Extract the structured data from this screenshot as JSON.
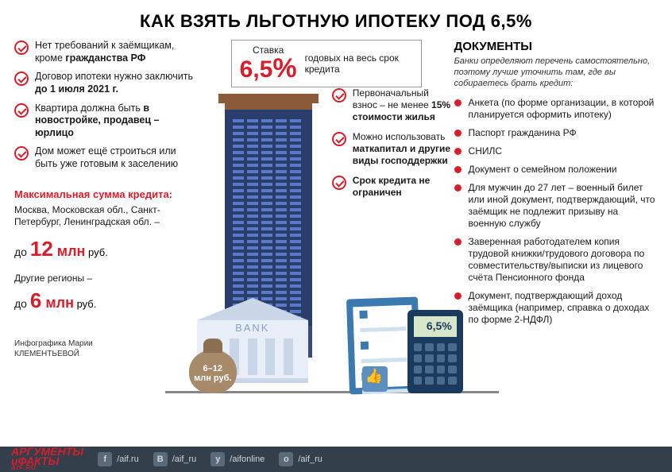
{
  "colors": {
    "accent": "#d81e2a",
    "text": "#1a1a1a",
    "footer_bg": "#333f4a",
    "building": "#2a3e6e",
    "bank": "#e8eef7"
  },
  "title": "КАК ВЗЯТЬ ЛЬГОТНУЮ ИПОТЕКУ ПОД 6,5%",
  "left_checks": [
    {
      "plain_pre": "Нет требований к заёмщикам, кроме ",
      "bold": "гражданства РФ",
      "plain_post": ""
    },
    {
      "plain_pre": "Договор ипотеки нужно заключить ",
      "bold": "до 1 июля 2021 г.",
      "plain_post": ""
    },
    {
      "plain_pre": "Квартира должна быть ",
      "bold": "в новостройке, продавец – юрлицо",
      "plain_post": ""
    },
    {
      "plain_pre": "Дом может ещё строиться или быть уже готовым к заселению",
      "bold": "",
      "plain_post": ""
    }
  ],
  "credit": {
    "title": "Максимальная сумма кредита:",
    "sub": "Москва, Московская обл., Санкт-Петербург, Ленинградская обл. –",
    "amount1_pre": "до ",
    "amount1_big": "12",
    "amount1_mln": " млн",
    "amount1_rub": " руб.",
    "other": "Другие регионы –",
    "amount2_pre": "до ",
    "amount2_big": "6",
    "amount2_mln": " млн",
    "amount2_rub": " руб."
  },
  "credit_note_1": "Инфографика Марии",
  "credit_note_2": "КЛЕМЕНТЬЕВОЙ",
  "rate": {
    "label": "Ставка",
    "value": "6,5",
    "pct": "%",
    "desc": "годовых на весь срок кредита"
  },
  "mid_checks": [
    {
      "plain_pre": "Первоначальный взнос – не менее ",
      "bold": "15% стоимости жилья",
      "plain_post": ""
    },
    {
      "plain_pre": "Можно использовать ",
      "bold": "маткапитал и другие виды господдержки",
      "plain_post": ""
    },
    {
      "plain_pre": "",
      "bold": "Срок кредита не ограничен",
      "plain_post": ""
    }
  ],
  "scene": {
    "bank_sign": "BANK",
    "bag_label_1": "6–12",
    "bag_label_2": "млн руб.",
    "calc_display": "6,5%"
  },
  "docs": {
    "title": "ДОКУМЕНТЫ",
    "intro": "Банки определяют перечень самостоятельно, поэтому лучше уточнить там, где вы собираетесь брать кредит:",
    "items": [
      "Анкета (по форме организации, в которой планируется оформить ипотеку)",
      "Паспорт гражданина РФ",
      "СНИЛС",
      "Документ о семейном положении",
      "Для мужчин до 27 лет – военный билет или иной документ, подтверждающий, что заёмщик не подлежит призыву на военную службу",
      "Заверенная работодателем копия трудовой книжки/трудового договора по совместительству/выписки из лицевого счёта Пенсионного фонда",
      "Документ, подтверждающий доход заёмщика (например, справка о доходах по форме 2-НДФЛ)"
    ]
  },
  "footer": {
    "logo1": "АРГУМЕНТЫ",
    "logo2": "иФАКТЫ",
    "logo3": "AIF.RU",
    "socials": [
      {
        "icon": "f",
        "handle": "/aif.ru"
      },
      {
        "icon": "B",
        "handle": "/aif_ru"
      },
      {
        "icon": "y",
        "handle": "/aifonline"
      },
      {
        "icon": "o",
        "handle": "/aif_ru"
      }
    ]
  }
}
